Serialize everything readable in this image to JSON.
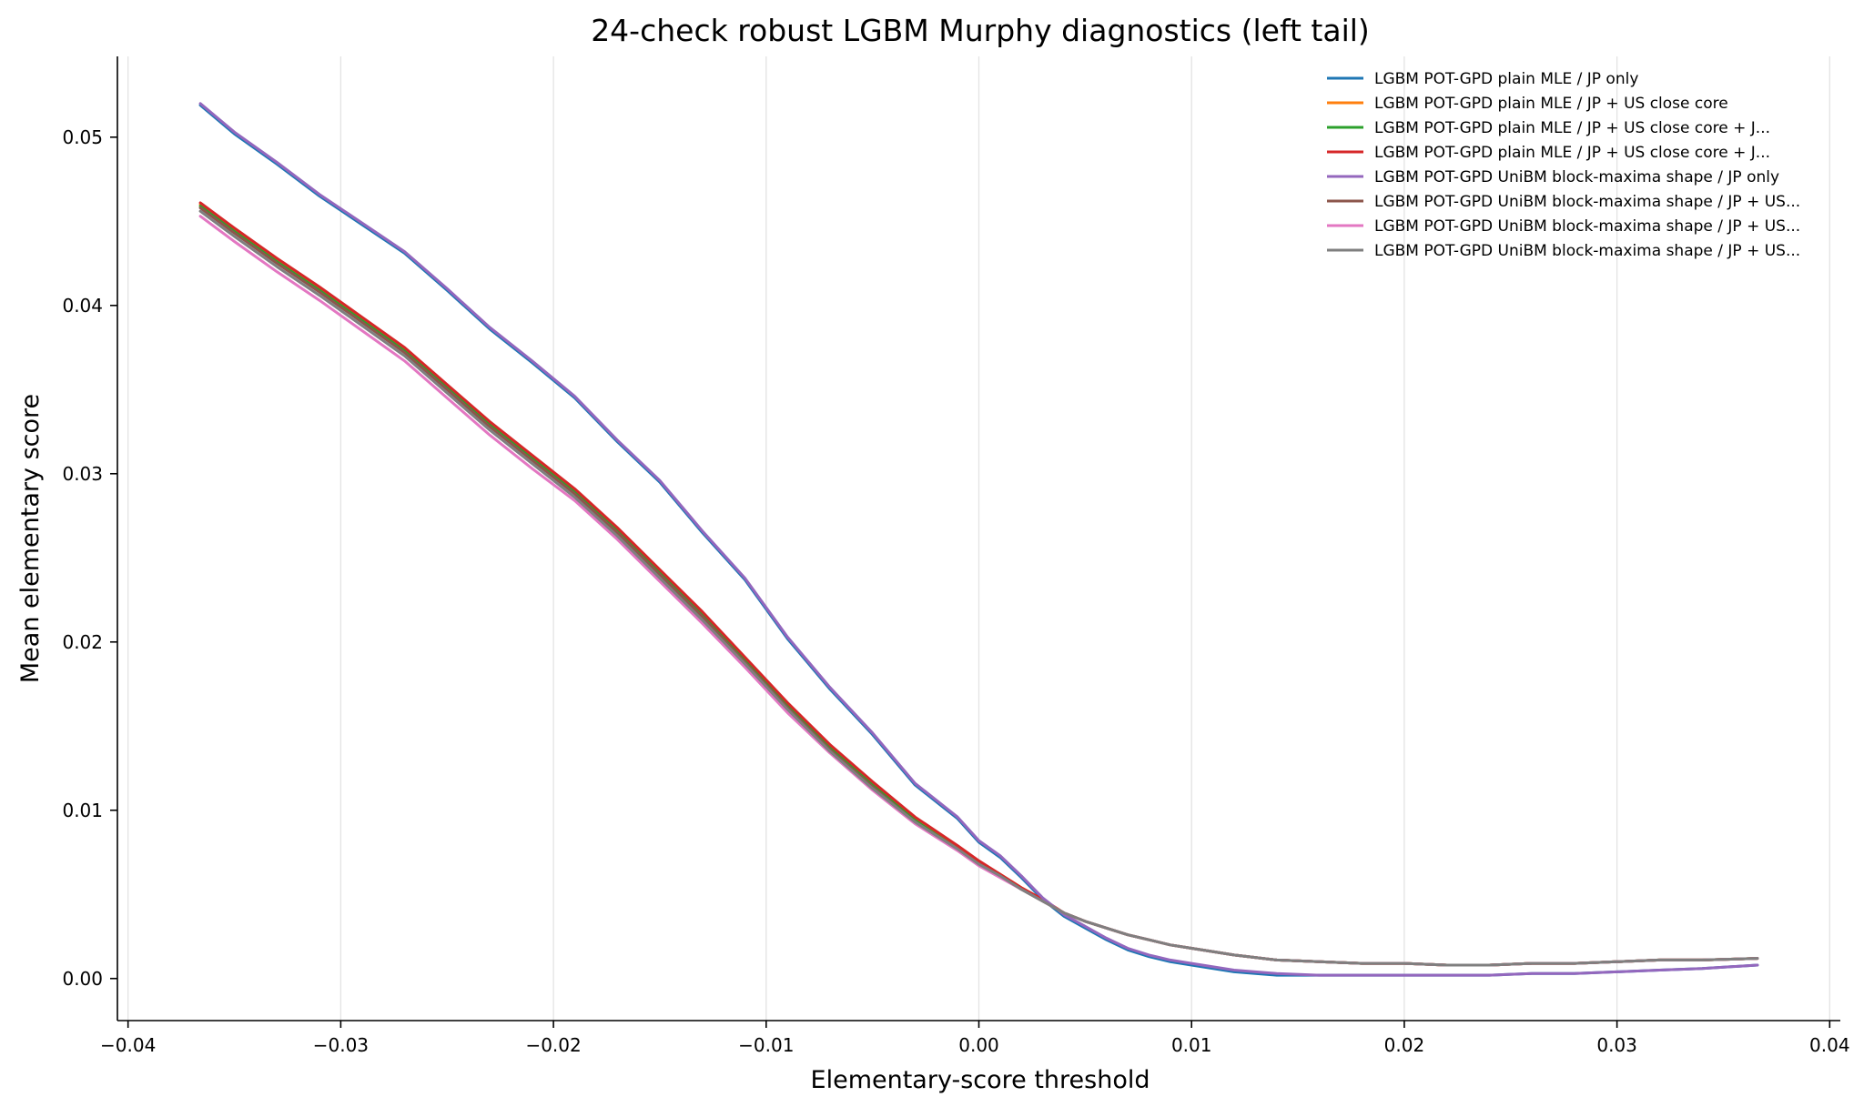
{
  "chart_data": {
    "type": "line",
    "title": "24-check robust LGBM Murphy diagnostics (left tail)",
    "xlabel": "Elementary-score threshold",
    "ylabel": "Mean elementary score",
    "xlim": [
      -0.0405,
      0.0405
    ],
    "ylim": [
      -0.0025,
      0.0548
    ],
    "xticks": [
      -0.04,
      -0.03,
      -0.02,
      -0.01,
      0.0,
      0.01,
      0.02,
      0.03,
      0.04
    ],
    "xtick_labels": [
      "−0.04",
      "−0.03",
      "−0.02",
      "−0.01",
      "0.00",
      "0.01",
      "0.02",
      "0.03",
      "0.04"
    ],
    "yticks": [
      0.0,
      0.01,
      0.02,
      0.03,
      0.04,
      0.05
    ],
    "ytick_labels": [
      "0.00",
      "0.01",
      "0.02",
      "0.03",
      "0.04",
      "0.05"
    ],
    "grid": "vertical",
    "legend_position": "top-right",
    "x": [
      -0.0366,
      -0.035,
      -0.033,
      -0.031,
      -0.029,
      -0.027,
      -0.025,
      -0.023,
      -0.021,
      -0.019,
      -0.017,
      -0.015,
      -0.013,
      -0.011,
      -0.009,
      -0.007,
      -0.005,
      -0.003,
      -0.001,
      0.0,
      0.001,
      0.002,
      0.003,
      0.004,
      0.005,
      0.006,
      0.007,
      0.008,
      0.009,
      0.01,
      0.012,
      0.014,
      0.016,
      0.018,
      0.02,
      0.022,
      0.024,
      0.026,
      0.028,
      0.03,
      0.032,
      0.034,
      0.0366
    ],
    "series": [
      {
        "name": "LGBM POT-GPD plain MLE / JP only",
        "color": "#1f77b4",
        "values": [
          0.0519,
          0.0502,
          0.0484,
          0.0465,
          0.0448,
          0.0431,
          0.0409,
          0.0386,
          0.0366,
          0.0345,
          0.0319,
          0.0295,
          0.0265,
          0.0237,
          0.0202,
          0.0172,
          0.0145,
          0.0115,
          0.0095,
          0.0081,
          0.0072,
          0.006,
          0.0047,
          0.0037,
          0.003,
          0.0023,
          0.0017,
          0.0013,
          0.001,
          0.0008,
          0.0004,
          0.0002,
          0.0002,
          0.0002,
          0.0002,
          0.0002,
          0.0002,
          0.0003,
          0.0003,
          0.0004,
          0.0005,
          0.0006,
          0.0008
        ]
      },
      {
        "name": "LGBM POT-GPD plain MLE / JP + US close core",
        "color": "#ff7f0e",
        "values": [
          0.046,
          0.0445,
          0.0427,
          0.041,
          0.0392,
          0.0374,
          0.0352,
          0.033,
          0.031,
          0.029,
          0.0267,
          0.0242,
          0.0217,
          0.019,
          0.0163,
          0.0138,
          0.0116,
          0.0095,
          0.0078,
          0.0069,
          0.0062,
          0.0054,
          0.0047,
          0.0039,
          0.0034,
          0.003,
          0.0026,
          0.0023,
          0.002,
          0.0018,
          0.0014,
          0.0011,
          0.001,
          0.0009,
          0.0009,
          0.0008,
          0.0008,
          0.0009,
          0.0009,
          0.001,
          0.0011,
          0.0011,
          0.0012
        ]
      },
      {
        "name": "LGBM POT-GPD plain MLE / JP + US close core + J...",
        "color": "#2ca02c",
        "values": [
          0.0459,
          0.0444,
          0.0426,
          0.0409,
          0.0391,
          0.0373,
          0.0351,
          0.0329,
          0.0309,
          0.0289,
          0.0266,
          0.0241,
          0.0216,
          0.0189,
          0.0162,
          0.0137,
          0.0115,
          0.0094,
          0.0077,
          0.0068,
          0.0061,
          0.0053,
          0.0046,
          0.0039,
          0.0034,
          0.003,
          0.0026,
          0.0023,
          0.002,
          0.0018,
          0.0014,
          0.0011,
          0.001,
          0.0009,
          0.0009,
          0.0008,
          0.0008,
          0.0009,
          0.0009,
          0.001,
          0.0011,
          0.0011,
          0.0012
        ]
      },
      {
        "name": "LGBM POT-GPD plain MLE / JP + US close core + J...",
        "color": "#d62728",
        "values": [
          0.0461,
          0.0446,
          0.0428,
          0.0411,
          0.0393,
          0.0375,
          0.0353,
          0.0331,
          0.0311,
          0.0291,
          0.0268,
          0.0243,
          0.0218,
          0.0191,
          0.0164,
          0.0139,
          0.0117,
          0.0096,
          0.0079,
          0.007,
          0.0062,
          0.0054,
          0.0047,
          0.0039,
          0.0034,
          0.003,
          0.0026,
          0.0023,
          0.002,
          0.0018,
          0.0014,
          0.0011,
          0.001,
          0.0009,
          0.0009,
          0.0008,
          0.0008,
          0.0009,
          0.0009,
          0.001,
          0.0011,
          0.0011,
          0.0012
        ]
      },
      {
        "name": "LGBM POT-GPD UniBM block-maxima shape / JP only",
        "color": "#9467bd",
        "values": [
          0.052,
          0.0503,
          0.0485,
          0.0466,
          0.0449,
          0.0432,
          0.041,
          0.0387,
          0.0367,
          0.0346,
          0.032,
          0.0296,
          0.0266,
          0.0238,
          0.0203,
          0.0173,
          0.0146,
          0.0116,
          0.0096,
          0.0082,
          0.0073,
          0.0061,
          0.0048,
          0.0038,
          0.0031,
          0.0024,
          0.0018,
          0.0014,
          0.0011,
          0.0009,
          0.0005,
          0.0003,
          0.0002,
          0.0002,
          0.0002,
          0.0002,
          0.0002,
          0.0003,
          0.0003,
          0.0004,
          0.0005,
          0.0006,
          0.0008
        ]
      },
      {
        "name": "LGBM POT-GPD UniBM block-maxima shape / JP + US...",
        "color": "#8c564b",
        "values": [
          0.0458,
          0.0443,
          0.0425,
          0.0408,
          0.039,
          0.0372,
          0.035,
          0.0328,
          0.0308,
          0.0288,
          0.0265,
          0.024,
          0.0215,
          0.0188,
          0.0161,
          0.0136,
          0.0114,
          0.0093,
          0.0077,
          0.0068,
          0.0061,
          0.0053,
          0.0046,
          0.0039,
          0.0034,
          0.003,
          0.0026,
          0.0023,
          0.002,
          0.0018,
          0.0014,
          0.0011,
          0.001,
          0.0009,
          0.0009,
          0.0008,
          0.0008,
          0.0009,
          0.0009,
          0.001,
          0.0011,
          0.0011,
          0.0012
        ]
      },
      {
        "name": "LGBM POT-GPD UniBM block-maxima shape / JP + US...",
        "color": "#e377c2",
        "values": [
          0.0453,
          0.0438,
          0.042,
          0.0403,
          0.0385,
          0.0367,
          0.0345,
          0.0323,
          0.0303,
          0.0284,
          0.0261,
          0.0236,
          0.0211,
          0.0185,
          0.0158,
          0.0134,
          0.0112,
          0.0092,
          0.0076,
          0.0067,
          0.006,
          0.0053,
          0.0046,
          0.0039,
          0.0034,
          0.003,
          0.0026,
          0.0023,
          0.002,
          0.0018,
          0.0014,
          0.0011,
          0.001,
          0.0009,
          0.0009,
          0.0008,
          0.0008,
          0.0009,
          0.0009,
          0.001,
          0.0011,
          0.0011,
          0.0012
        ]
      },
      {
        "name": "LGBM POT-GPD UniBM block-maxima shape / JP + US...",
        "color": "#7f7f7f",
        "values": [
          0.0456,
          0.0441,
          0.0423,
          0.0406,
          0.0388,
          0.037,
          0.0348,
          0.0326,
          0.0306,
          0.0286,
          0.0263,
          0.0238,
          0.0213,
          0.0187,
          0.016,
          0.0135,
          0.0113,
          0.0093,
          0.0077,
          0.0068,
          0.0061,
          0.0053,
          0.0046,
          0.0039,
          0.0034,
          0.003,
          0.0026,
          0.0023,
          0.002,
          0.0018,
          0.0014,
          0.0011,
          0.001,
          0.0009,
          0.0009,
          0.0008,
          0.0008,
          0.0009,
          0.0009,
          0.001,
          0.0011,
          0.0011,
          0.0012
        ]
      }
    ]
  }
}
